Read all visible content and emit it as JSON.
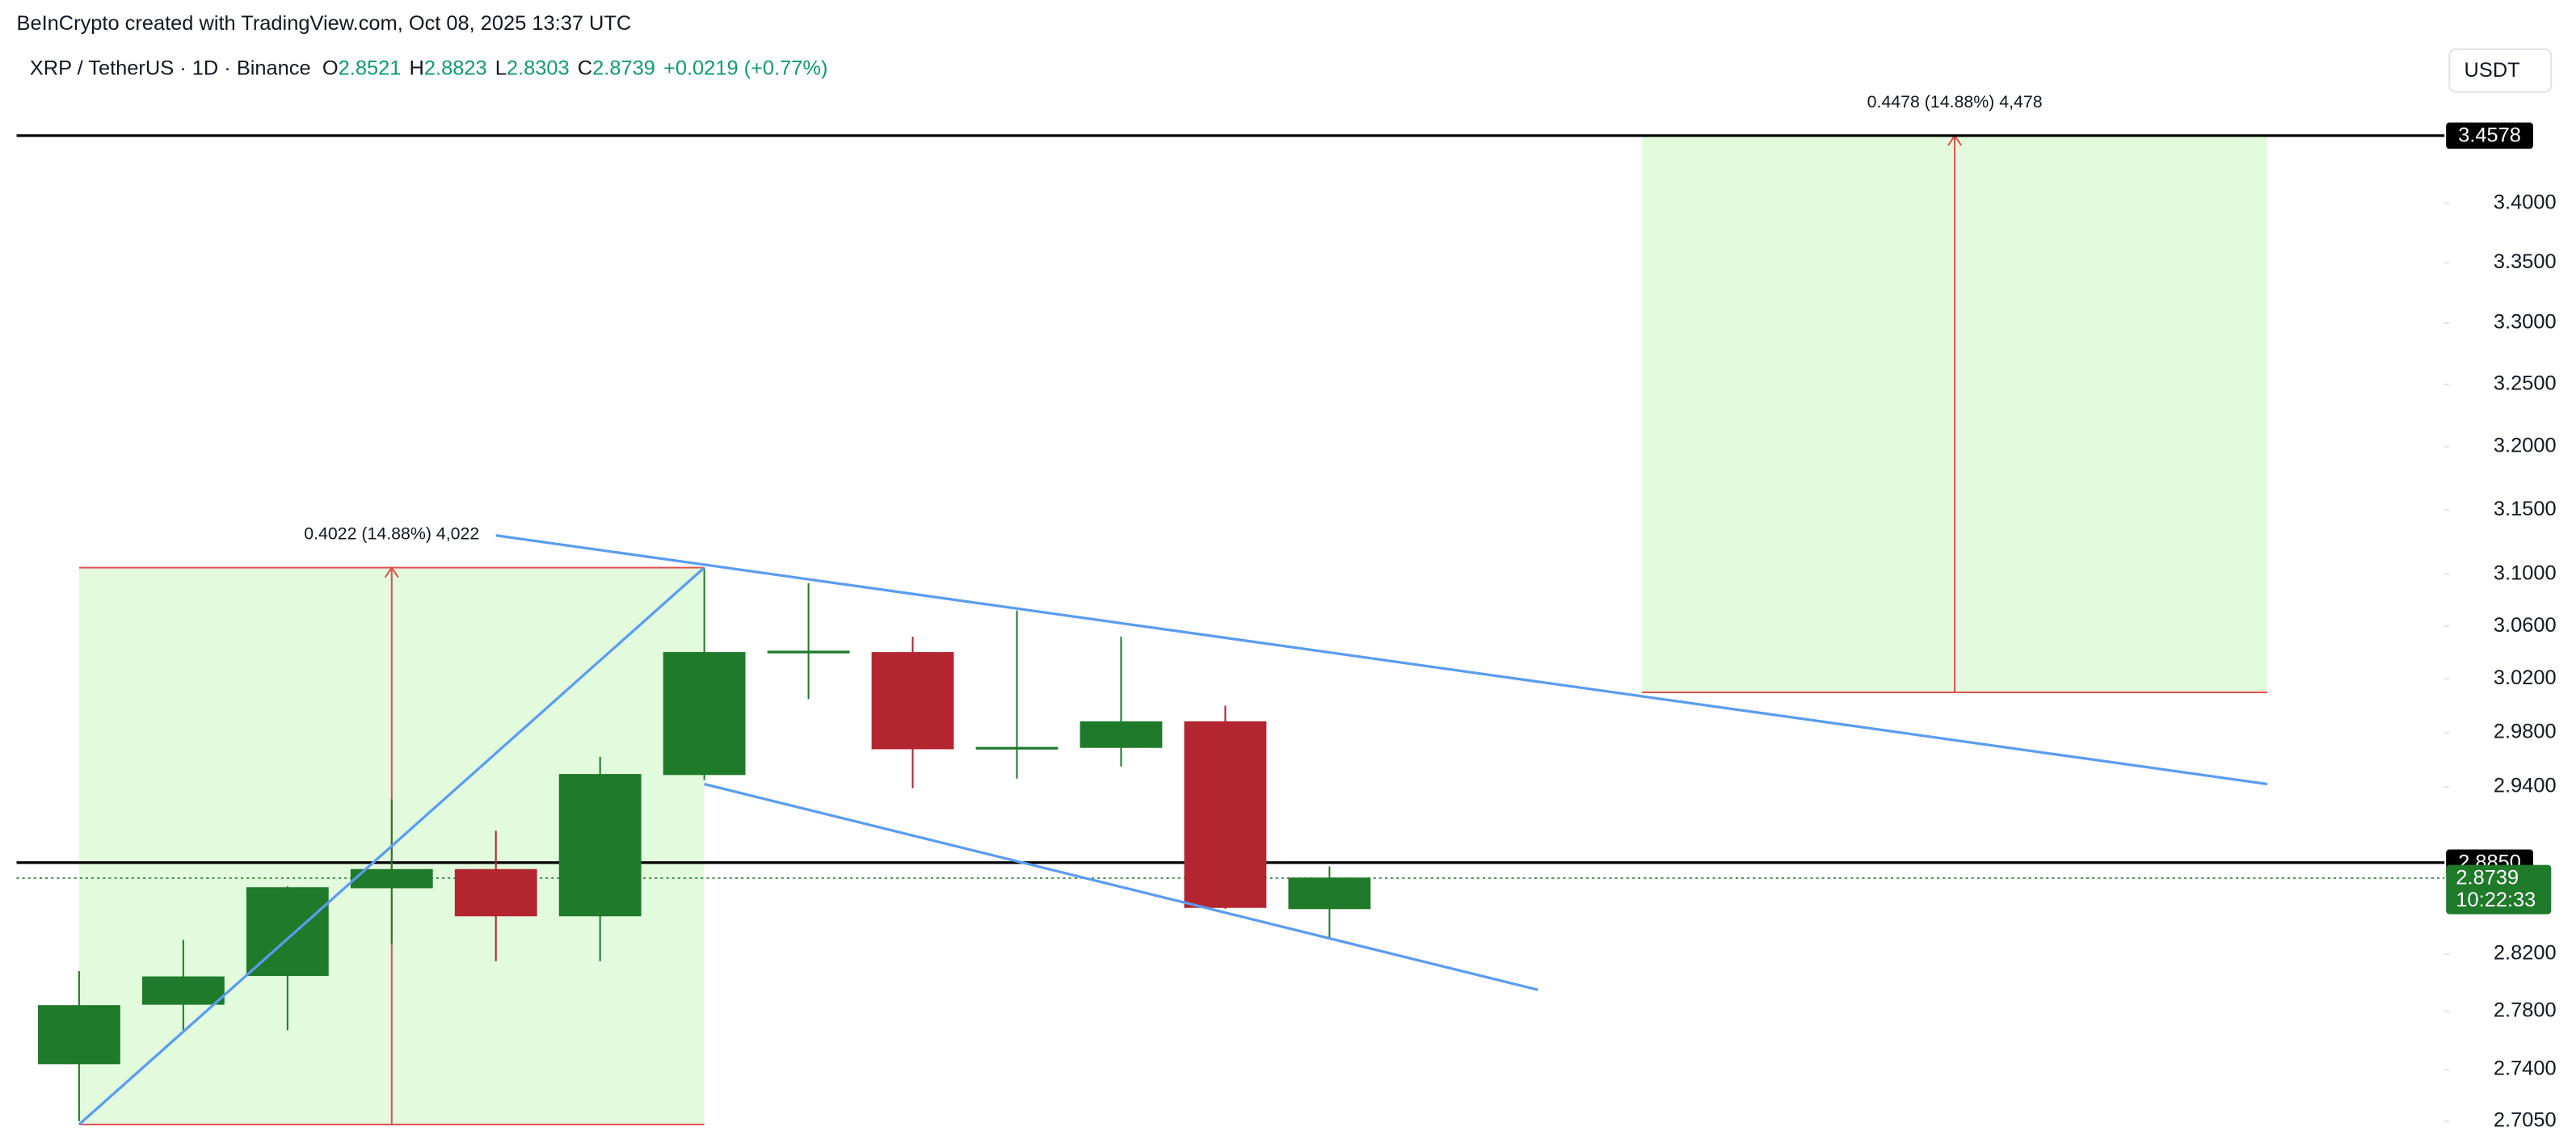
{
  "header": {
    "credit": "BeInCrypto created with TradingView.com, Oct 08, 2025 13:37 UTC",
    "symbol": "XRP / TetherUS · 1D · Binance",
    "ohlc": [
      {
        "key": "O",
        "value": 2.8521
      },
      {
        "key": "H",
        "value": 2.8823
      },
      {
        "key": "L",
        "value": 2.8303
      },
      {
        "key": "C",
        "value": 2.8739
      }
    ],
    "change": "+0.0219 (+0.77%)",
    "currency": "USDT"
  },
  "chart_data": {
    "type": "candlestick",
    "categories": [
      null,
      null,
      null,
      null,
      null,
      null,
      null,
      null,
      null,
      null,
      null,
      null,
      null
    ],
    "open": [
      2.744,
      2.785,
      2.805,
      2.867,
      2.88,
      2.847,
      2.949,
      3.04,
      3.04,
      2.968,
      2.969,
      2.988,
      2.8521
    ],
    "high": [
      2.808,
      2.83,
      2.868,
      2.931,
      2.908,
      2.962,
      3.105,
      3.093,
      3.052,
      3.072,
      3.052,
      3.0,
      2.8823
    ],
    "low": [
      2.705,
      2.767,
      2.767,
      2.827,
      2.815,
      2.815,
      2.945,
      3.005,
      2.939,
      2.946,
      2.955,
      2.852,
      2.8303
    ],
    "close": [
      2.784,
      2.804,
      2.867,
      2.88,
      2.847,
      2.949,
      3.04,
      3.041,
      2.968,
      2.969,
      2.988,
      2.853,
      2.8739
    ],
    "up_color": "#1f7a2a",
    "down_color": "#b3262f",
    "xlim": [
      -0.6,
      22.7
    ],
    "ylim": [
      2.687,
      3.533
    ],
    "log_scale": true,
    "grid": false,
    "yticks": [
      {
        "value": 2.705,
        "label": "2.7050"
      },
      {
        "value": 2.74,
        "label": "2.7400"
      },
      {
        "value": 2.78,
        "label": "2.7800"
      },
      {
        "value": 2.82,
        "label": "2.8200"
      },
      {
        "value": 2.94,
        "label": "2.9400"
      },
      {
        "value": 2.98,
        "label": "2.9800"
      },
      {
        "value": 3.02,
        "label": "3.0200"
      },
      {
        "value": 3.06,
        "label": "3.0600"
      },
      {
        "value": 3.1,
        "label": "3.1000"
      },
      {
        "value": 3.15,
        "label": "3.1500"
      },
      {
        "value": 3.2,
        "label": "3.2000"
      },
      {
        "value": 3.25,
        "label": "3.2500"
      },
      {
        "value": 3.3,
        "label": "3.3000"
      },
      {
        "value": 3.35,
        "label": "3.3500"
      },
      {
        "value": 3.4,
        "label": "3.4000"
      }
    ],
    "price_lines": [
      {
        "value": 3.4578,
        "label": "3.4578",
        "color": "#000000"
      },
      {
        "value": 2.885,
        "label": "2.8850",
        "color": "#000000"
      }
    ],
    "current_price": {
      "value": 2.8739,
      "label": "2.8739",
      "countdown": "10:22:33",
      "color": "#1f7a2a"
    },
    "trendlines": [
      {
        "x": [
          0,
          6
        ],
        "y": [
          2.7028,
          3.105
        ],
        "color": "#5b9cf0"
      },
      {
        "x": [
          4,
          21
        ],
        "y": [
          3.13,
          2.942
        ],
        "color": "#5b9cf0"
      },
      {
        "x": [
          6,
          14
        ],
        "y": [
          2.942,
          2.795
        ],
        "color": "#5b9cf0"
      }
    ],
    "ranges": [
      {
        "x": [
          0,
          6
        ],
        "y": [
          2.7028,
          3.105
        ],
        "label": "0.4022 (14.88%) 4,022",
        "fill": "#e2fbdc",
        "color": "#e0504f"
      },
      {
        "x": [
          15,
          21
        ],
        "y": [
          3.01,
          3.4578
        ],
        "label": "0.4478 (14.88%) 4,478",
        "fill": "#e2fbdc",
        "color": "#e0504f"
      }
    ]
  }
}
